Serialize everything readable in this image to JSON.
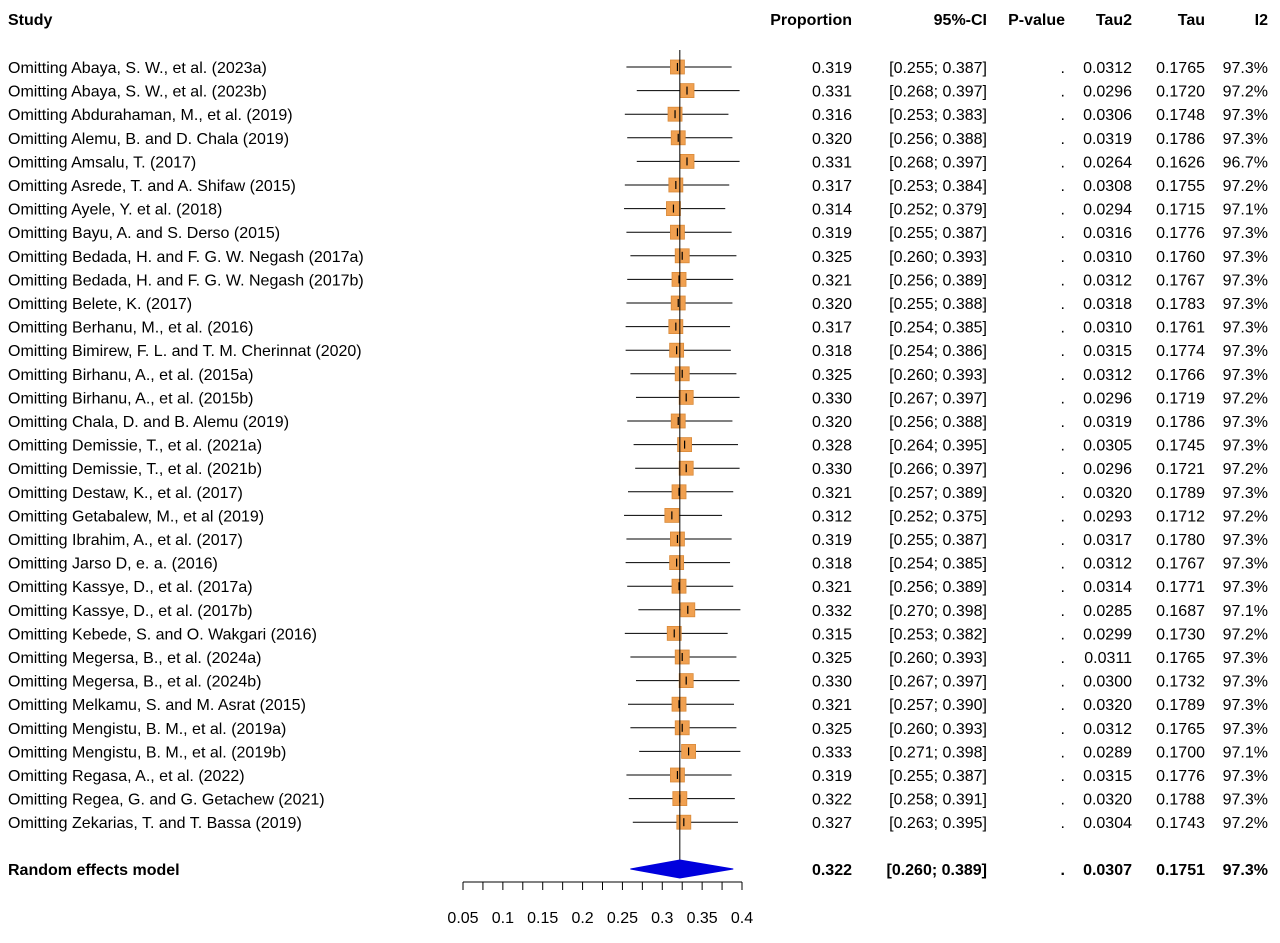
{
  "headers": {
    "study": "Study",
    "proportion": "Proportion",
    "ci": "95%-CI",
    "pvalue": "P-value",
    "tau2": "Tau2",
    "tau": "Tau",
    "i2": "I2"
  },
  "colors": {
    "box": "#f0a050",
    "box_border": "#d98a3a",
    "diamond": "#0000dd",
    "line": "#000000"
  },
  "chart_data": {
    "type": "forest",
    "xlim": [
      0.05,
      0.4
    ],
    "ticks": [
      "0.05",
      "0.1",
      "0.15",
      "0.2",
      "0.25",
      "0.3",
      "0.35",
      "0.4"
    ],
    "reference_line": 0.322,
    "studies": [
      {
        "label": "Omitting Abaya, S. W., et al. (2023a)",
        "prop": "0.319",
        "ci": "[0.255; 0.387]",
        "p": ".",
        "tau2": "0.0312",
        "tau": "0.1765",
        "i2": "97.3%",
        "est": 0.319,
        "lo": 0.255,
        "hi": 0.387
      },
      {
        "label": "Omitting Abaya, S. W., et al. (2023b)",
        "prop": "0.331",
        "ci": "[0.268; 0.397]",
        "p": ".",
        "tau2": "0.0296",
        "tau": "0.1720",
        "i2": "97.2%",
        "est": 0.331,
        "lo": 0.268,
        "hi": 0.397
      },
      {
        "label": "Omitting Abdurahaman, M., et al. (2019)",
        "prop": "0.316",
        "ci": "[0.253; 0.383]",
        "p": ".",
        "tau2": "0.0306",
        "tau": "0.1748",
        "i2": "97.3%",
        "est": 0.316,
        "lo": 0.253,
        "hi": 0.383
      },
      {
        "label": "Omitting Alemu, B. and D. Chala (2019)",
        "prop": "0.320",
        "ci": "[0.256; 0.388]",
        "p": ".",
        "tau2": "0.0319",
        "tau": "0.1786",
        "i2": "97.3%",
        "est": 0.32,
        "lo": 0.256,
        "hi": 0.388
      },
      {
        "label": "Omitting Amsalu, T. (2017)",
        "prop": "0.331",
        "ci": "[0.268; 0.397]",
        "p": ".",
        "tau2": "0.0264",
        "tau": "0.1626",
        "i2": "96.7%",
        "est": 0.331,
        "lo": 0.268,
        "hi": 0.397
      },
      {
        "label": "Omitting Asrede, T. and A. Shifaw (2015)",
        "prop": "0.317",
        "ci": "[0.253; 0.384]",
        "p": ".",
        "tau2": "0.0308",
        "tau": "0.1755",
        "i2": "97.2%",
        "est": 0.317,
        "lo": 0.253,
        "hi": 0.384
      },
      {
        "label": "Omitting Ayele, Y. et al. (2018)",
        "prop": "0.314",
        "ci": "[0.252; 0.379]",
        "p": ".",
        "tau2": "0.0294",
        "tau": "0.1715",
        "i2": "97.1%",
        "est": 0.314,
        "lo": 0.252,
        "hi": 0.379
      },
      {
        "label": "Omitting Bayu, A. and S. Derso (2015)",
        "prop": "0.319",
        "ci": "[0.255; 0.387]",
        "p": ".",
        "tau2": "0.0316",
        "tau": "0.1776",
        "i2": "97.3%",
        "est": 0.319,
        "lo": 0.255,
        "hi": 0.387
      },
      {
        "label": "Omitting Bedada, H. and F. G. W. Negash (2017a)",
        "prop": "0.325",
        "ci": "[0.260; 0.393]",
        "p": ".",
        "tau2": "0.0310",
        "tau": "0.1760",
        "i2": "97.3%",
        "est": 0.325,
        "lo": 0.26,
        "hi": 0.393
      },
      {
        "label": "Omitting Bedada, H. and F. G. W. Negash (2017b)",
        "prop": "0.321",
        "ci": "[0.256; 0.389]",
        "p": ".",
        "tau2": "0.0312",
        "tau": "0.1767",
        "i2": "97.3%",
        "est": 0.321,
        "lo": 0.256,
        "hi": 0.389
      },
      {
        "label": "Omitting Belete, K. (2017)",
        "prop": "0.320",
        "ci": "[0.255; 0.388]",
        "p": ".",
        "tau2": "0.0318",
        "tau": "0.1783",
        "i2": "97.3%",
        "est": 0.32,
        "lo": 0.255,
        "hi": 0.388
      },
      {
        "label": "Omitting Berhanu, M., et al. (2016)",
        "prop": "0.317",
        "ci": "[0.254; 0.385]",
        "p": ".",
        "tau2": "0.0310",
        "tau": "0.1761",
        "i2": "97.3%",
        "est": 0.317,
        "lo": 0.254,
        "hi": 0.385
      },
      {
        "label": "Omitting Bimirew, F. L. and T. M. Cherinnat (2020)",
        "prop": "0.318",
        "ci": "[0.254; 0.386]",
        "p": ".",
        "tau2": "0.0315",
        "tau": "0.1774",
        "i2": "97.3%",
        "est": 0.318,
        "lo": 0.254,
        "hi": 0.386
      },
      {
        "label": "Omitting Birhanu, A., et al. (2015a)",
        "prop": "0.325",
        "ci": "[0.260; 0.393]",
        "p": ".",
        "tau2": "0.0312",
        "tau": "0.1766",
        "i2": "97.3%",
        "est": 0.325,
        "lo": 0.26,
        "hi": 0.393
      },
      {
        "label": "Omitting Birhanu, A., et al. (2015b)",
        "prop": "0.330",
        "ci": "[0.267; 0.397]",
        "p": ".",
        "tau2": "0.0296",
        "tau": "0.1719",
        "i2": "97.2%",
        "est": 0.33,
        "lo": 0.267,
        "hi": 0.397
      },
      {
        "label": "Omitting Chala, D. and B. Alemu (2019)",
        "prop": "0.320",
        "ci": "[0.256; 0.388]",
        "p": ".",
        "tau2": "0.0319",
        "tau": "0.1786",
        "i2": "97.3%",
        "est": 0.32,
        "lo": 0.256,
        "hi": 0.388
      },
      {
        "label": "Omitting Demissie, T., et al. (2021a)",
        "prop": "0.328",
        "ci": "[0.264; 0.395]",
        "p": ".",
        "tau2": "0.0305",
        "tau": "0.1745",
        "i2": "97.3%",
        "est": 0.328,
        "lo": 0.264,
        "hi": 0.395
      },
      {
        "label": "Omitting Demissie, T., et al. (2021b)",
        "prop": "0.330",
        "ci": "[0.266; 0.397]",
        "p": ".",
        "tau2": "0.0296",
        "tau": "0.1721",
        "i2": "97.2%",
        "est": 0.33,
        "lo": 0.266,
        "hi": 0.397
      },
      {
        "label": "Omitting Destaw, K., et al. (2017)",
        "prop": "0.321",
        "ci": "[0.257; 0.389]",
        "p": ".",
        "tau2": "0.0320",
        "tau": "0.1789",
        "i2": "97.3%",
        "est": 0.321,
        "lo": 0.257,
        "hi": 0.389
      },
      {
        "label": "Omitting Getabalew, M., et al (2019)",
        "prop": "0.312",
        "ci": "[0.252; 0.375]",
        "p": ".",
        "tau2": "0.0293",
        "tau": "0.1712",
        "i2": "97.2%",
        "est": 0.312,
        "lo": 0.252,
        "hi": 0.375
      },
      {
        "label": "Omitting Ibrahim, A., et al. (2017)",
        "prop": "0.319",
        "ci": "[0.255; 0.387]",
        "p": ".",
        "tau2": "0.0317",
        "tau": "0.1780",
        "i2": "97.3%",
        "est": 0.319,
        "lo": 0.255,
        "hi": 0.387
      },
      {
        "label": "Omitting Jarso D, e. a. (2016)",
        "prop": "0.318",
        "ci": "[0.254; 0.385]",
        "p": ".",
        "tau2": "0.0312",
        "tau": "0.1767",
        "i2": "97.3%",
        "est": 0.318,
        "lo": 0.254,
        "hi": 0.385
      },
      {
        "label": "Omitting Kassye, D., et al. (2017a)",
        "prop": "0.321",
        "ci": "[0.256; 0.389]",
        "p": ".",
        "tau2": "0.0314",
        "tau": "0.1771",
        "i2": "97.3%",
        "est": 0.321,
        "lo": 0.256,
        "hi": 0.389
      },
      {
        "label": "Omitting Kassye, D., et al. (2017b)",
        "prop": "0.332",
        "ci": "[0.270; 0.398]",
        "p": ".",
        "tau2": "0.0285",
        "tau": "0.1687",
        "i2": "97.1%",
        "est": 0.332,
        "lo": 0.27,
        "hi": 0.398
      },
      {
        "label": "Omitting Kebede, S. and O. Wakgari (2016)",
        "prop": "0.315",
        "ci": "[0.253; 0.382]",
        "p": ".",
        "tau2": "0.0299",
        "tau": "0.1730",
        "i2": "97.2%",
        "est": 0.315,
        "lo": 0.253,
        "hi": 0.382
      },
      {
        "label": "Omitting Megersa, B., et al. (2024a)",
        "prop": "0.325",
        "ci": "[0.260; 0.393]",
        "p": ".",
        "tau2": "0.0311",
        "tau": "0.1765",
        "i2": "97.3%",
        "est": 0.325,
        "lo": 0.26,
        "hi": 0.393
      },
      {
        "label": "Omitting Megersa, B., et al. (2024b)",
        "prop": "0.330",
        "ci": "[0.267; 0.397]",
        "p": ".",
        "tau2": "0.0300",
        "tau": "0.1732",
        "i2": "97.3%",
        "est": 0.33,
        "lo": 0.267,
        "hi": 0.397
      },
      {
        "label": "Omitting Melkamu, S. and M. Asrat (2015)",
        "prop": "0.321",
        "ci": "[0.257; 0.390]",
        "p": ".",
        "tau2": "0.0320",
        "tau": "0.1789",
        "i2": "97.3%",
        "est": 0.321,
        "lo": 0.257,
        "hi": 0.39
      },
      {
        "label": "Omitting Mengistu, B. M., et al. (2019a)",
        "prop": "0.325",
        "ci": "[0.260; 0.393]",
        "p": ".",
        "tau2": "0.0312",
        "tau": "0.1765",
        "i2": "97.3%",
        "est": 0.325,
        "lo": 0.26,
        "hi": 0.393
      },
      {
        "label": "Omitting Mengistu, B. M., et al. (2019b)",
        "prop": "0.333",
        "ci": "[0.271; 0.398]",
        "p": ".",
        "tau2": "0.0289",
        "tau": "0.1700",
        "i2": "97.1%",
        "est": 0.333,
        "lo": 0.271,
        "hi": 0.398
      },
      {
        "label": "Omitting Regasa, A., et al. (2022)",
        "prop": "0.319",
        "ci": "[0.255; 0.387]",
        "p": ".",
        "tau2": "0.0315",
        "tau": "0.1776",
        "i2": "97.3%",
        "est": 0.319,
        "lo": 0.255,
        "hi": 0.387
      },
      {
        "label": "Omitting Regea, G. and G. Getachew (2021)",
        "prop": "0.322",
        "ci": "[0.258; 0.391]",
        "p": ".",
        "tau2": "0.0320",
        "tau": "0.1788",
        "i2": "97.3%",
        "est": 0.322,
        "lo": 0.258,
        "hi": 0.391
      },
      {
        "label": "Omitting Zekarias, T. and T. Bassa (2019)",
        "prop": "0.327",
        "ci": "[0.263; 0.395]",
        "p": ".",
        "tau2": "0.0304",
        "tau": "0.1743",
        "i2": "97.2%",
        "est": 0.327,
        "lo": 0.263,
        "hi": 0.395
      }
    ],
    "pooled": {
      "label": "Random effects model",
      "prop": "0.322",
      "ci": "[0.260; 0.389]",
      "p": ".",
      "tau2": "0.0307",
      "tau": "0.1751",
      "i2": "97.3%",
      "est": 0.322,
      "lo": 0.26,
      "hi": 0.389
    }
  }
}
